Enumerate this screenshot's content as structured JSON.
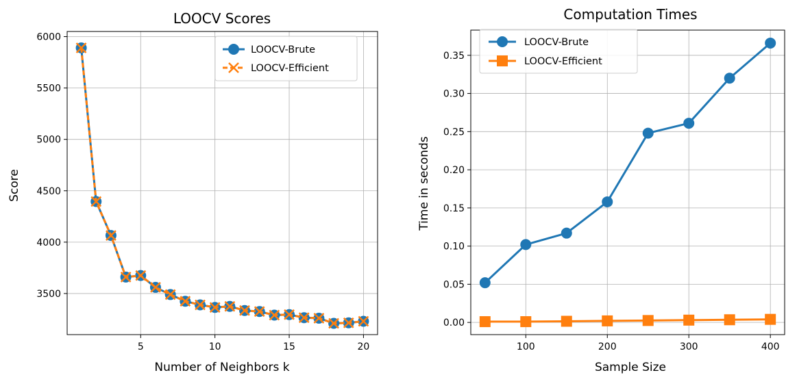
{
  "colors": {
    "blue": "#1f77b4",
    "orange": "#ff7f0e"
  },
  "chart_data": [
    {
      "type": "line",
      "title": "LOOCV Scores",
      "xlabel": "Number of Neighbors k",
      "ylabel": "Score",
      "xlim": [
        0.05,
        20.95
      ],
      "ylim": [
        3100,
        6050
      ],
      "xticks": [
        5,
        10,
        15,
        20
      ],
      "yticks": [
        3500,
        4000,
        4500,
        5000,
        5500,
        6000
      ],
      "grid": true,
      "legend": "top-right",
      "x": [
        1,
        2,
        3,
        4,
        5,
        6,
        7,
        8,
        9,
        10,
        11,
        12,
        13,
        14,
        15,
        16,
        17,
        18,
        19,
        20
      ],
      "series": [
        {
          "name": "LOOCV-Brute",
          "marker": "circle",
          "color": "#1f77b4",
          "values": [
            5890,
            4395,
            4065,
            3660,
            3675,
            3560,
            3490,
            3425,
            3390,
            3365,
            3375,
            3335,
            3325,
            3290,
            3295,
            3265,
            3260,
            3210,
            3215,
            3230
          ]
        },
        {
          "name": "LOOCV-Efficient",
          "marker": "x",
          "color": "#ff7f0e",
          "values": [
            5890,
            4395,
            4065,
            3660,
            3675,
            3560,
            3490,
            3425,
            3390,
            3365,
            3375,
            3335,
            3325,
            3290,
            3295,
            3265,
            3260,
            3210,
            3215,
            3230
          ]
        }
      ]
    },
    {
      "type": "line",
      "title": "Computation Times",
      "xlabel": "Sample Size",
      "ylabel": "Time in seconds",
      "xlim": [
        32.5,
        417.5
      ],
      "ylim": [
        -0.016,
        0.383
      ],
      "xticks": [
        100,
        200,
        300,
        400
      ],
      "yticks": [
        0.0,
        0.05,
        0.1,
        0.15,
        0.2,
        0.25,
        0.3,
        0.35
      ],
      "grid": true,
      "legend": "top-left",
      "x": [
        50,
        100,
        150,
        200,
        250,
        300,
        350,
        400
      ],
      "series": [
        {
          "name": "LOOCV-Brute",
          "marker": "circle",
          "color": "#1f77b4",
          "values": [
            0.052,
            0.102,
            0.117,
            0.158,
            0.248,
            0.261,
            0.32,
            0.366
          ]
        },
        {
          "name": "LOOCV-Efficient",
          "marker": "square",
          "color": "#ff7f0e",
          "values": [
            0.001,
            0.001,
            0.0015,
            0.002,
            0.0025,
            0.003,
            0.0035,
            0.004
          ]
        }
      ]
    }
  ]
}
